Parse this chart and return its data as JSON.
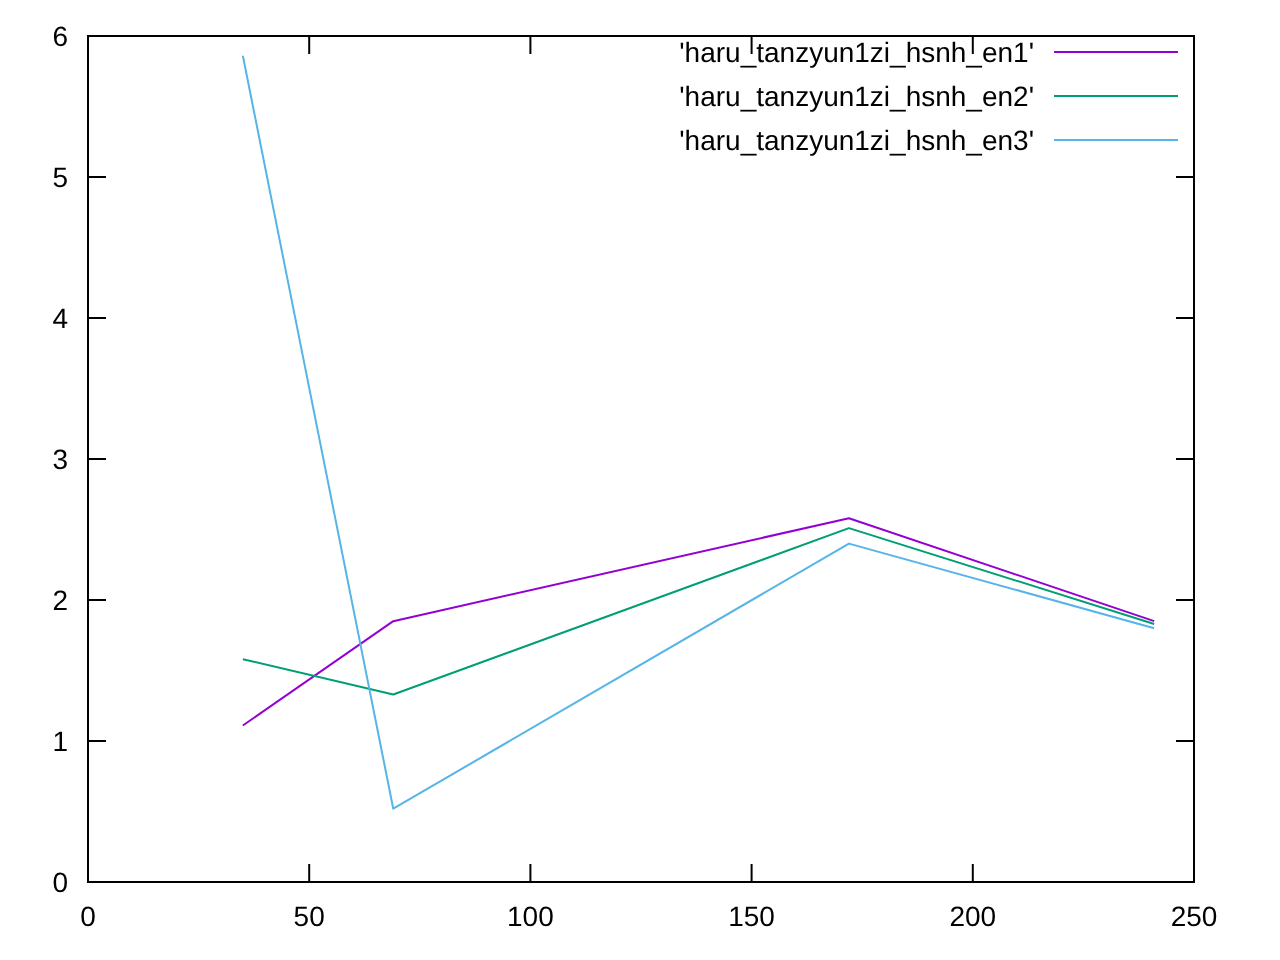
{
  "chart_data": {
    "type": "line",
    "x": [
      35,
      69,
      172,
      241
    ],
    "series": [
      {
        "name": "'haru_tanzyun1zi_hsnh_en1'",
        "color": "#9400d3",
        "values": [
          1.11,
          1.85,
          2.58,
          1.85
        ]
      },
      {
        "name": "'haru_tanzyun1zi_hsnh_en2'",
        "color": "#009e73",
        "values": [
          1.58,
          1.33,
          2.51,
          1.83
        ]
      },
      {
        "name": "'haru_tanzyun1zi_hsnh_en3'",
        "color": "#56b4e9",
        "values": [
          5.86,
          0.52,
          2.4,
          1.8
        ]
      }
    ],
    "xlim": [
      0,
      250
    ],
    "xticks": [
      0,
      50,
      100,
      150,
      200,
      250
    ],
    "ylim": [
      0,
      6
    ],
    "yticks": [
      0,
      1,
      2,
      3,
      4,
      5,
      6
    ],
    "legend": "top right",
    "grid": false
  }
}
